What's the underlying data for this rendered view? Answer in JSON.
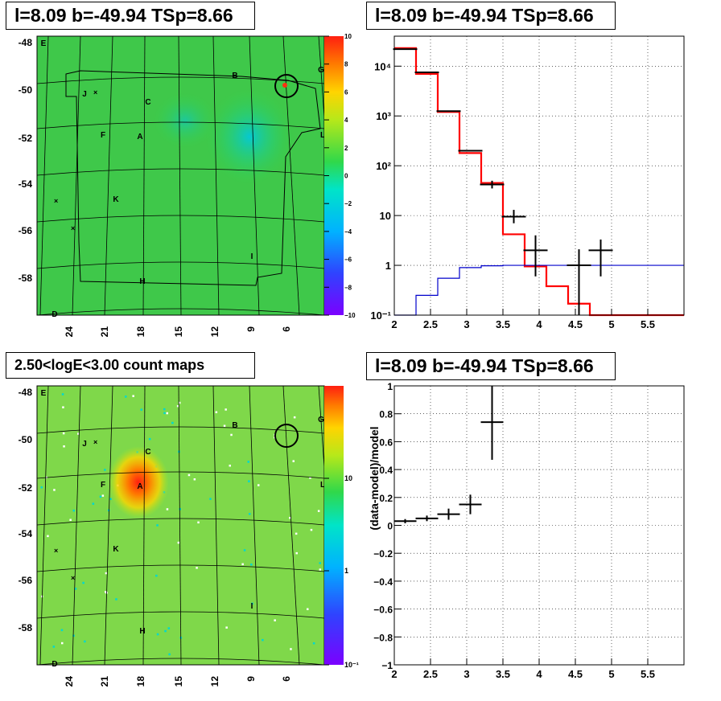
{
  "titles": {
    "map_top": "l=8.09 b=-49.94 TSp=8.66",
    "spectrum": "l=8.09 b=-49.94 TSp=8.66",
    "map_bottom": "2.50<logE<3.00 count maps",
    "residual": "l=8.09 b=-49.94 TSp=8.66"
  },
  "colors": {
    "model_total": "#ff0000",
    "model_source": "#0000cc",
    "data": "#000000",
    "residual_map_bg": "#3fc84a",
    "count_map_bg": "#7fd84a"
  },
  "maps": {
    "lat_ticks": [
      "-48",
      "-50",
      "-52",
      "-54",
      "-56",
      "-58"
    ],
    "lon_ticks": [
      "24",
      "21",
      "18",
      "15",
      "12",
      "9",
      "6"
    ],
    "source_labels": [
      "E",
      "B",
      "G",
      "J",
      "C",
      "F",
      "A",
      "L",
      "K",
      "I",
      "H",
      "D"
    ],
    "residual_colorbar": [
      "10",
      "8",
      "6",
      "4",
      "2",
      "0",
      "−2",
      "−4",
      "−6",
      "−8",
      "−10"
    ],
    "count_colorbar": [
      "10",
      "1",
      "10⁻¹"
    ]
  },
  "chart_data": [
    {
      "type": "line",
      "title": "l=8.09 b=-49.94 TSp=8.66",
      "xlabel": "",
      "ylabel": "",
      "log_y": true,
      "xlim": [
        2,
        6
      ],
      "ylim": [
        0.1,
        40000
      ],
      "x_ticks": [
        "2",
        "2.5",
        "3",
        "3.5",
        "4",
        "4.5",
        "5",
        "5.5"
      ],
      "y_ticks": [
        "10⁻¹",
        "1",
        "10",
        "10²",
        "10³",
        "10⁴"
      ],
      "grid": true,
      "series": [
        {
          "kind": "step",
          "color": "#ff0000",
          "edges": [
            2,
            2.3,
            2.6,
            2.9,
            3.2,
            3.5,
            3.8,
            4.1,
            4.4,
            4.7,
            5,
            6
          ],
          "values": [
            23000,
            7000,
            1200,
            180,
            45,
            4.2,
            0.95,
            0.38,
            0.17,
            0.1,
            0.1
          ]
        },
        {
          "kind": "step",
          "color": "#0000cc",
          "edges": [
            2,
            2.3,
            2.6,
            2.9,
            3.2,
            3.5,
            3.8,
            4.1,
            4.4,
            4.7,
            5,
            6
          ],
          "values": [
            0.1,
            0.25,
            0.55,
            0.9,
            0.98,
            1.0,
            1.0,
            1.0,
            1.0,
            1.0,
            1.0
          ]
        },
        {
          "kind": "points",
          "color": "#000000",
          "points": [
            {
              "x": 2.15,
              "y": 22000
            },
            {
              "x": 2.45,
              "y": 7500
            },
            {
              "x": 2.75,
              "y": 1250
            },
            {
              "x": 3.05,
              "y": 200
            },
            {
              "x": 3.35,
              "y": 42,
              "ylo": 35,
              "yhi": 50
            },
            {
              "x": 3.65,
              "y": 9.5,
              "ylo": 7,
              "yhi": 13
            },
            {
              "x": 3.95,
              "y": 2,
              "ylo": 0.6,
              "yhi": 4
            },
            {
              "x": 4.55,
              "y": 1,
              "ylo": 0.1,
              "yhi": 2.1
            },
            {
              "x": 4.85,
              "y": 2,
              "ylo": 0.6,
              "yhi": 3.3
            }
          ]
        }
      ]
    },
    {
      "type": "scatter",
      "title": "l=8.09 b=-49.94 TSp=8.66",
      "xlabel": "",
      "ylabel": "(data-model)/model",
      "xlim": [
        2,
        6
      ],
      "ylim": [
        -1,
        1
      ],
      "x_ticks": [
        "2",
        "2.5",
        "3",
        "3.5",
        "4",
        "4.5",
        "5",
        "5.5"
      ],
      "y_ticks": [
        "−1",
        "−0.8",
        "−0.6",
        "−0.4",
        "−0.2",
        "0",
        "0.2",
        "0.4",
        "0.6",
        "0.8",
        "1"
      ],
      "grid": true,
      "points": [
        {
          "x": 2.15,
          "y": 0.03,
          "ylo": 0.015,
          "yhi": 0.045
        },
        {
          "x": 2.45,
          "y": 0.05,
          "ylo": 0.03,
          "yhi": 0.07
        },
        {
          "x": 2.75,
          "y": 0.08,
          "ylo": 0.04,
          "yhi": 0.12
        },
        {
          "x": 3.05,
          "y": 0.15,
          "ylo": 0.08,
          "yhi": 0.22
        },
        {
          "x": 3.35,
          "y": 0.74,
          "ylo": 0.47,
          "yhi": 1.0
        }
      ]
    }
  ]
}
